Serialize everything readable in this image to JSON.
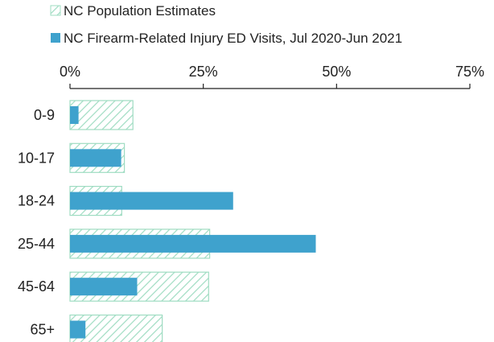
{
  "chart_data": {
    "type": "bar",
    "orientation": "horizontal",
    "title": "",
    "xlabel": "",
    "ylabel": "",
    "x_axis_position": "top",
    "xlim": [
      0,
      75
    ],
    "x_ticks": [
      "0%",
      "25%",
      "50%",
      "75%"
    ],
    "x_tick_values": [
      0,
      25,
      50,
      75
    ],
    "grid": false,
    "legend_position": "top-left",
    "categories": [
      "0-9",
      "10-17",
      "18-24",
      "25-44",
      "45-64",
      "65+"
    ],
    "series": [
      {
        "name": "NC Population Estimates",
        "style": "hatched",
        "color": "#9fdcc2",
        "values": [
          11.8,
          10.2,
          9.7,
          26.2,
          26.0,
          17.3
        ]
      },
      {
        "name": "NC Firearm-Related Injury ED Visits, Jul 2020-Jun 2021",
        "style": "solid",
        "color": "#3fa2cd",
        "values": [
          1.6,
          9.6,
          30.6,
          46.1,
          12.6,
          2.9
        ]
      }
    ]
  }
}
